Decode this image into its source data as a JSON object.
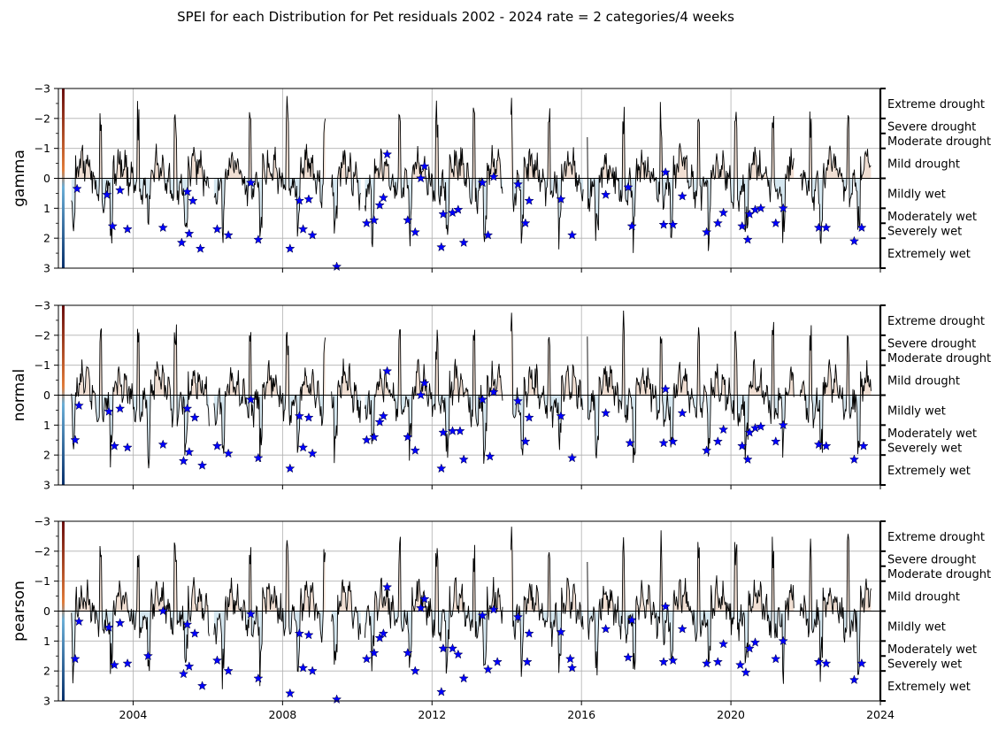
{
  "figure": {
    "title": "SPEI for each Distribution for Pet residuals 2002 - 2024 rate = 2 categories/4 weeks"
  },
  "colors": {
    "series_line": "#000000",
    "marker": "#0000ff",
    "grid": "#b0b0b0",
    "drought_fill": "#e8c9b6",
    "wet_fill": "#b9d7e6",
    "colorbar_top": "#6b0f0f",
    "colorbar_mid_top": "#e07b39",
    "colorbar_mid_bottom": "#6baed6",
    "colorbar_bottom": "#08306b"
  },
  "chart_data": [
    {
      "type": "line",
      "distribution": "gamma",
      "ylabel": "gamma",
      "ylim": [
        3,
        -3
      ],
      "yticks": [
        "−3",
        "−2",
        "−1",
        "0",
        "1",
        "2",
        "3"
      ],
      "xlim": [
        2002.0,
        2024.0
      ],
      "xticks": [
        "2004",
        "2008",
        "2012",
        "2016",
        "2020",
        "2024"
      ],
      "grid": true,
      "categories": [
        {
          "label": "Extreme drought",
          "value": -2.5
        },
        {
          "label": "Severe drought",
          "value": -1.75
        },
        {
          "label": "Moderate drought",
          "value": -1.25
        },
        {
          "label": "Mild drought",
          "value": -0.5
        },
        {
          "label": "Mildly wet",
          "value": 0.5
        },
        {
          "label": "Moderately wet",
          "value": 1.25
        },
        {
          "label": "Severely wet",
          "value": 1.75
        },
        {
          "label": "Extremely wet",
          "value": 2.5
        }
      ],
      "markers": [
        [
          2002.5,
          0.35
        ],
        [
          2003.3,
          0.55
        ],
        [
          2003.45,
          1.6
        ],
        [
          2003.65,
          0.4
        ],
        [
          2003.85,
          1.7
        ],
        [
          2004.8,
          1.65
        ],
        [
          2005.3,
          2.15
        ],
        [
          2005.45,
          0.45
        ],
        [
          2005.5,
          1.85
        ],
        [
          2005.6,
          0.75
        ],
        [
          2005.8,
          2.35
        ],
        [
          2006.25,
          1.7
        ],
        [
          2006.55,
          1.9
        ],
        [
          2007.15,
          0.15
        ],
        [
          2007.35,
          2.05
        ],
        [
          2008.2,
          2.35
        ],
        [
          2008.45,
          0.75
        ],
        [
          2008.55,
          1.7
        ],
        [
          2008.7,
          0.7
        ],
        [
          2008.8,
          1.9
        ],
        [
          2009.45,
          2.95
        ],
        [
          2010.25,
          1.5
        ],
        [
          2010.45,
          1.4
        ],
        [
          2010.6,
          0.9
        ],
        [
          2010.7,
          0.65
        ],
        [
          2010.8,
          -0.8
        ],
        [
          2011.35,
          1.4
        ],
        [
          2011.55,
          1.8
        ],
        [
          2011.7,
          0.0
        ],
        [
          2011.8,
          -0.4
        ],
        [
          2012.25,
          2.3
        ],
        [
          2012.3,
          1.2
        ],
        [
          2012.55,
          1.15
        ],
        [
          2012.7,
          1.05
        ],
        [
          2012.85,
          2.15
        ],
        [
          2013.35,
          0.15
        ],
        [
          2013.5,
          1.9
        ],
        [
          2013.65,
          -0.05
        ],
        [
          2014.3,
          0.2
        ],
        [
          2014.5,
          1.5
        ],
        [
          2014.6,
          0.75
        ],
        [
          2015.45,
          0.7
        ],
        [
          2015.75,
          1.9
        ],
        [
          2016.65,
          0.55
        ],
        [
          2017.25,
          0.3
        ],
        [
          2017.35,
          1.6
        ],
        [
          2018.2,
          1.55
        ],
        [
          2018.25,
          -0.2
        ],
        [
          2018.45,
          1.55
        ],
        [
          2018.7,
          0.6
        ],
        [
          2019.35,
          1.8
        ],
        [
          2019.65,
          1.5
        ],
        [
          2019.8,
          1.15
        ],
        [
          2020.3,
          1.6
        ],
        [
          2020.45,
          2.05
        ],
        [
          2020.5,
          1.2
        ],
        [
          2020.65,
          1.05
        ],
        [
          2020.8,
          1.0
        ],
        [
          2021.2,
          1.5
        ],
        [
          2021.4,
          1.0
        ],
        [
          2022.35,
          1.65
        ],
        [
          2022.55,
          1.65
        ],
        [
          2023.3,
          2.1
        ],
        [
          2023.5,
          1.65
        ]
      ]
    },
    {
      "type": "line",
      "distribution": "normal",
      "ylabel": "normal",
      "ylim": [
        3,
        -3
      ],
      "yticks": [
        "−3",
        "−2",
        "−1",
        "0",
        "1",
        "2",
        "3"
      ],
      "xlim": [
        2002.0,
        2024.0
      ],
      "xticks": [
        "2004",
        "2008",
        "2012",
        "2016",
        "2020",
        "2024"
      ],
      "grid": true,
      "categories": [
        {
          "label": "Extreme drought",
          "value": -2.5
        },
        {
          "label": "Severe drought",
          "value": -1.75
        },
        {
          "label": "Moderate drought",
          "value": -1.25
        },
        {
          "label": "Mild drought",
          "value": -0.5
        },
        {
          "label": "Mildly wet",
          "value": 0.5
        },
        {
          "label": "Moderately wet",
          "value": 1.25
        },
        {
          "label": "Severely wet",
          "value": 1.75
        },
        {
          "label": "Extremely wet",
          "value": 2.5
        }
      ],
      "markers": [
        [
          2002.45,
          1.5
        ],
        [
          2002.55,
          0.35
        ],
        [
          2003.35,
          0.55
        ],
        [
          2003.5,
          1.7
        ],
        [
          2003.65,
          0.45
        ],
        [
          2003.85,
          1.75
        ],
        [
          2004.8,
          1.65
        ],
        [
          2005.35,
          2.2
        ],
        [
          2005.45,
          0.45
        ],
        [
          2005.5,
          1.9
        ],
        [
          2005.65,
          0.75
        ],
        [
          2005.85,
          2.35
        ],
        [
          2006.25,
          1.7
        ],
        [
          2006.55,
          1.95
        ],
        [
          2007.15,
          0.15
        ],
        [
          2007.35,
          2.1
        ],
        [
          2008.2,
          2.45
        ],
        [
          2008.45,
          0.7
        ],
        [
          2008.55,
          1.75
        ],
        [
          2008.7,
          0.75
        ],
        [
          2008.8,
          1.95
        ],
        [
          2010.25,
          1.5
        ],
        [
          2010.45,
          1.4
        ],
        [
          2010.6,
          0.9
        ],
        [
          2010.7,
          0.7
        ],
        [
          2010.8,
          -0.8
        ],
        [
          2011.35,
          1.4
        ],
        [
          2011.55,
          1.85
        ],
        [
          2011.7,
          0.0
        ],
        [
          2011.8,
          -0.4
        ],
        [
          2012.25,
          2.45
        ],
        [
          2012.3,
          1.25
        ],
        [
          2012.55,
          1.2
        ],
        [
          2012.75,
          1.2
        ],
        [
          2012.85,
          2.15
        ],
        [
          2013.35,
          0.15
        ],
        [
          2013.55,
          2.05
        ],
        [
          2013.65,
          -0.1
        ],
        [
          2014.3,
          0.2
        ],
        [
          2014.5,
          1.55
        ],
        [
          2014.6,
          0.75
        ],
        [
          2015.45,
          0.7
        ],
        [
          2015.75,
          2.1
        ],
        [
          2016.65,
          0.6
        ],
        [
          2017.3,
          1.6
        ],
        [
          2018.2,
          1.6
        ],
        [
          2018.25,
          -0.2
        ],
        [
          2018.45,
          1.55
        ],
        [
          2018.7,
          0.6
        ],
        [
          2019.35,
          1.85
        ],
        [
          2019.65,
          1.55
        ],
        [
          2019.8,
          1.15
        ],
        [
          2020.3,
          1.7
        ],
        [
          2020.45,
          2.15
        ],
        [
          2020.5,
          1.25
        ],
        [
          2020.65,
          1.1
        ],
        [
          2020.8,
          1.05
        ],
        [
          2021.2,
          1.55
        ],
        [
          2021.4,
          1.0
        ],
        [
          2022.35,
          1.65
        ],
        [
          2022.55,
          1.7
        ],
        [
          2023.3,
          2.15
        ],
        [
          2023.55,
          1.7
        ]
      ]
    },
    {
      "type": "line",
      "distribution": "pearson",
      "ylabel": "pearson",
      "ylim": [
        3,
        -3
      ],
      "yticks": [
        "−3",
        "−2",
        "−1",
        "0",
        "1",
        "2",
        "3"
      ],
      "xlim": [
        2002.0,
        2024.0
      ],
      "xticks": [
        "2004",
        "2008",
        "2012",
        "2016",
        "2020",
        "2024"
      ],
      "grid": true,
      "categories": [
        {
          "label": "Extreme drought",
          "value": -2.5
        },
        {
          "label": "Severe drought",
          "value": -1.75
        },
        {
          "label": "Moderate drought",
          "value": -1.25
        },
        {
          "label": "Mild drought",
          "value": -0.5
        },
        {
          "label": "Mildly wet",
          "value": 0.5
        },
        {
          "label": "Moderately wet",
          "value": 1.25
        },
        {
          "label": "Severely wet",
          "value": 1.75
        },
        {
          "label": "Extremely wet",
          "value": 2.5
        }
      ],
      "markers": [
        [
          2002.45,
          1.6
        ],
        [
          2002.55,
          0.35
        ],
        [
          2003.35,
          0.55
        ],
        [
          2003.5,
          1.8
        ],
        [
          2003.65,
          0.4
        ],
        [
          2003.85,
          1.75
        ],
        [
          2004.4,
          1.5
        ],
        [
          2004.8,
          0.0
        ],
        [
          2005.35,
          2.1
        ],
        [
          2005.45,
          0.45
        ],
        [
          2005.5,
          1.85
        ],
        [
          2005.65,
          0.75
        ],
        [
          2005.85,
          2.5
        ],
        [
          2006.25,
          1.65
        ],
        [
          2006.55,
          2.0
        ],
        [
          2007.15,
          0.1
        ],
        [
          2007.35,
          2.25
        ],
        [
          2008.2,
          2.75
        ],
        [
          2008.45,
          0.75
        ],
        [
          2008.55,
          1.9
        ],
        [
          2008.7,
          0.8
        ],
        [
          2008.8,
          2.0
        ],
        [
          2009.45,
          2.95
        ],
        [
          2010.25,
          1.6
        ],
        [
          2010.45,
          1.4
        ],
        [
          2010.6,
          0.9
        ],
        [
          2010.7,
          0.75
        ],
        [
          2010.8,
          -0.8
        ],
        [
          2011.35,
          1.4
        ],
        [
          2011.55,
          2.0
        ],
        [
          2011.7,
          -0.1
        ],
        [
          2011.8,
          -0.4
        ],
        [
          2012.25,
          2.7
        ],
        [
          2012.3,
          1.25
        ],
        [
          2012.55,
          1.25
        ],
        [
          2012.7,
          1.45
        ],
        [
          2012.85,
          2.25
        ],
        [
          2013.35,
          0.15
        ],
        [
          2013.5,
          1.95
        ],
        [
          2013.65,
          -0.05
        ],
        [
          2013.75,
          1.7
        ],
        [
          2014.3,
          0.2
        ],
        [
          2014.55,
          1.7
        ],
        [
          2014.6,
          0.75
        ],
        [
          2015.45,
          0.7
        ],
        [
          2015.7,
          1.6
        ],
        [
          2015.75,
          1.9
        ],
        [
          2016.65,
          0.6
        ],
        [
          2017.25,
          1.55
        ],
        [
          2017.35,
          0.3
        ],
        [
          2018.2,
          1.7
        ],
        [
          2018.25,
          -0.15
        ],
        [
          2018.45,
          1.65
        ],
        [
          2018.7,
          0.6
        ],
        [
          2019.35,
          1.75
        ],
        [
          2019.65,
          1.7
        ],
        [
          2019.8,
          1.1
        ],
        [
          2020.25,
          1.8
        ],
        [
          2020.4,
          2.05
        ],
        [
          2020.5,
          1.25
        ],
        [
          2020.65,
          1.05
        ],
        [
          2021.2,
          1.6
        ],
        [
          2021.4,
          1.0
        ],
        [
          2022.35,
          1.7
        ],
        [
          2022.55,
          1.75
        ],
        [
          2023.3,
          2.3
        ],
        [
          2023.5,
          1.75
        ]
      ]
    }
  ]
}
